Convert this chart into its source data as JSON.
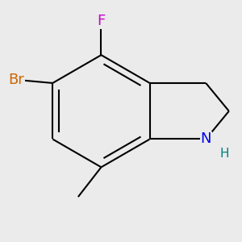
{
  "background_color": "#ebebeb",
  "atom_colors": {
    "C": "#000000",
    "N": "#0000ee",
    "F": "#cc00cc",
    "Br": "#cc6600",
    "H": "#008080"
  },
  "bond_color": "#000000",
  "bond_width": 1.5,
  "font_size_atoms": 13,
  "font_size_H": 11
}
